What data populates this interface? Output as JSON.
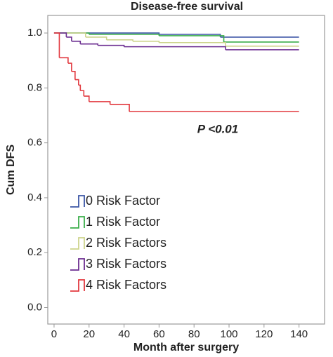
{
  "chart_data": {
    "type": "step",
    "title": "Disease-free survival",
    "x_label": "Month after surgery",
    "y_label": "Cum DFS",
    "annotation": "P <0.01",
    "xlim": [
      -3.6,
      154.6
    ],
    "ylim": [
      -0.06,
      1.064
    ],
    "xticks": [
      0,
      20,
      40,
      60,
      80,
      100,
      120,
      140
    ],
    "yticks": [
      {
        "value": 0,
        "label": "0.0"
      },
      0.2,
      0.4,
      0.6,
      0.8,
      {
        "value": 1,
        "label": "1.0"
      }
    ],
    "series": [
      {
        "name": "0 Risk Factor",
        "color": "#3b55a5",
        "x": [
          0,
          60,
          95,
          140
        ],
        "values": [
          1.0,
          0.995,
          0.985,
          0.985
        ]
      },
      {
        "name": "1 Risk Factor",
        "color": "#3aae4a",
        "x": [
          0,
          20,
          60,
          97,
          140
        ],
        "values": [
          1.0,
          0.995,
          0.99,
          0.967,
          0.967
        ]
      },
      {
        "name": "2 Risk Factors",
        "color": "#cdd48c",
        "x": [
          0,
          18,
          30,
          45,
          60,
          98,
          140
        ],
        "values": [
          1.0,
          0.985,
          0.975,
          0.97,
          0.965,
          0.952,
          0.952
        ]
      },
      {
        "name": "3 Risk Factors",
        "color": "#6b2d90",
        "x": [
          0,
          7,
          10,
          15,
          25,
          40,
          98,
          140
        ],
        "values": [
          1.0,
          0.985,
          0.97,
          0.96,
          0.955,
          0.95,
          0.939,
          0.939
        ]
      },
      {
        "name": "4 Risk Factors",
        "color": "#e2393f",
        "x": [
          0,
          3,
          8,
          10,
          12,
          14,
          15,
          17,
          20,
          32,
          43,
          140
        ],
        "values": [
          1.0,
          0.91,
          0.89,
          0.86,
          0.83,
          0.81,
          0.79,
          0.77,
          0.75,
          0.74,
          0.714,
          0.714
        ]
      }
    ]
  }
}
